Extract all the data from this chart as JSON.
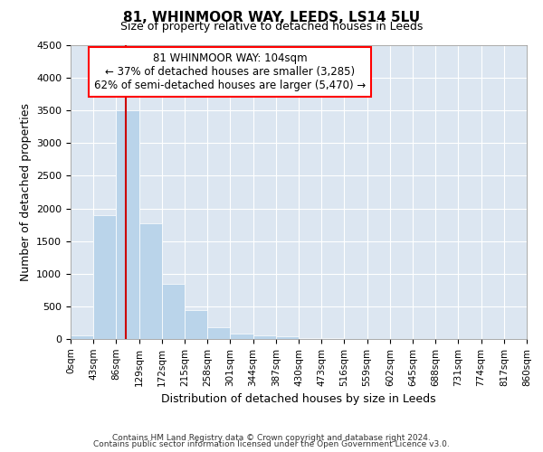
{
  "title": "81, WHINMOOR WAY, LEEDS, LS14 5LU",
  "subtitle": "Size of property relative to detached houses in Leeds",
  "xlabel": "Distribution of detached houses by size in Leeds",
  "ylabel": "Number of detached properties",
  "footer_line1": "Contains HM Land Registry data © Crown copyright and database right 2024.",
  "footer_line2": "Contains public sector information licensed under the Open Government Licence v3.0.",
  "annotation_line1": "81 WHINMOOR WAY: 104sqm",
  "annotation_line2": "← 37% of detached houses are smaller (3,285)",
  "annotation_line3": "62% of semi-detached houses are larger (5,470) →",
  "bar_color": "#bad4ea",
  "bar_edge_color": "#bad4ea",
  "grid_color": "#ffffff",
  "bg_color": "#dce6f1",
  "red_line_color": "#cc0000",
  "red_line_x": 104,
  "bin_edges": [
    0,
    43,
    86,
    129,
    172,
    215,
    258,
    301,
    344,
    387,
    430,
    473,
    516,
    559,
    602,
    645,
    688,
    731,
    774,
    817,
    860
  ],
  "bar_values": [
    55,
    1900,
    3500,
    1775,
    850,
    450,
    175,
    90,
    60,
    40,
    20,
    10,
    0,
    0,
    0,
    0,
    0,
    0,
    0,
    0
  ],
  "ylim": [
    0,
    4500
  ],
  "yticks": [
    0,
    500,
    1000,
    1500,
    2000,
    2500,
    3000,
    3500,
    4000,
    4500
  ]
}
